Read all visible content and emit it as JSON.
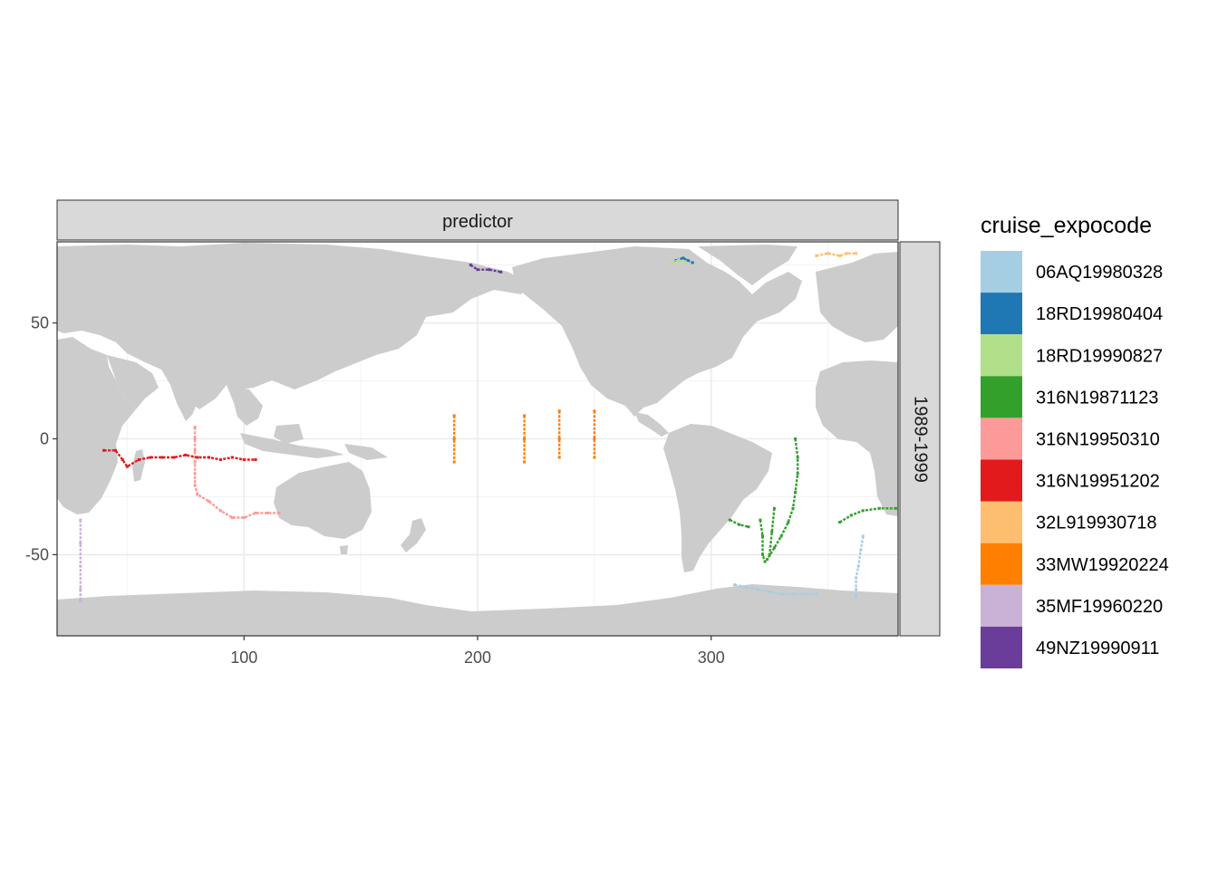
{
  "chart_data": {
    "type": "scatter",
    "panel_strip_top": "predictor",
    "panel_strip_right": "1989-1999",
    "x_ticks": [
      100,
      200,
      300
    ],
    "y_ticks": [
      50,
      0,
      -50
    ],
    "xlim": [
      20,
      380
    ],
    "ylim": [
      -85,
      85
    ],
    "legend": {
      "title": "cruise_expocode",
      "position": "right",
      "entries": [
        {
          "label": "06AQ19980328",
          "color": "#A6CEE3"
        },
        {
          "label": "18RD19980404",
          "color": "#1F78B4"
        },
        {
          "label": "18RD19990827",
          "color": "#B2DF8A"
        },
        {
          "label": "316N19871123",
          "color": "#33A02C"
        },
        {
          "label": "316N19950310",
          "color": "#FB9A99"
        },
        {
          "label": "316N19951202",
          "color": "#E31A1C"
        },
        {
          "label": "32L919930718",
          "color": "#FDBF6F"
        },
        {
          "label": "33MW19920224",
          "color": "#FF7F00"
        },
        {
          "label": "35MF19960220",
          "color": "#CAB2D6"
        },
        {
          "label": "49NZ19990911",
          "color": "#6A3D9A"
        }
      ]
    },
    "land_color": "#CCCCCC",
    "grid": true,
    "tracks": [
      {
        "cruise": "06AQ19980328",
        "points": [
          [
            310,
            -63
          ],
          [
            315,
            -64
          ],
          [
            320,
            -65
          ],
          [
            325,
            -66
          ],
          [
            330,
            -67
          ],
          [
            335,
            -67
          ],
          [
            340,
            -67
          ],
          [
            345,
            -67
          ]
        ]
      },
      {
        "cruise": "06AQ19980328",
        "points": [
          [
            365,
            -42
          ],
          [
            364,
            -48
          ],
          [
            363,
            -55
          ],
          [
            362,
            -60
          ],
          [
            362,
            -65
          ],
          [
            362,
            -68
          ]
        ]
      },
      {
        "cruise": "18RD19980404",
        "points": [
          [
            285,
            77
          ],
          [
            288,
            78
          ],
          [
            290,
            77
          ],
          [
            292,
            76
          ]
        ]
      },
      {
        "cruise": "18RD19990827",
        "points": [
          [
            283,
            76
          ],
          [
            286,
            77
          ],
          [
            289,
            76
          ]
        ]
      },
      {
        "cruise": "316N19871123",
        "points": [
          [
            336,
            0
          ],
          [
            337,
            -8
          ],
          [
            337,
            -15
          ],
          [
            336,
            -23
          ],
          [
            335,
            -30
          ],
          [
            333,
            -36
          ],
          [
            330,
            -42
          ],
          [
            327,
            -47
          ],
          [
            324,
            -52
          ]
        ]
      },
      {
        "cruise": "316N19871123",
        "points": [
          [
            321,
            -35
          ],
          [
            322,
            -42
          ],
          [
            322,
            -50
          ],
          [
            323,
            -53
          ]
        ]
      },
      {
        "cruise": "316N19871123",
        "points": [
          [
            327,
            -30
          ],
          [
            326,
            -40
          ],
          [
            325,
            -50
          ]
        ]
      },
      {
        "cruise": "316N19871123",
        "points": [
          [
            308,
            -35
          ],
          [
            312,
            -37
          ],
          [
            316,
            -38
          ]
        ]
      },
      {
        "cruise": "316N19871123",
        "points": [
          [
            355,
            -36
          ],
          [
            360,
            -33
          ],
          [
            365,
            -31
          ],
          [
            372,
            -30
          ],
          [
            379,
            -30
          ]
        ]
      },
      {
        "cruise": "316N19950310",
        "points": [
          [
            79,
            5
          ],
          [
            79,
            0
          ],
          [
            79,
            -5
          ],
          [
            79,
            -10
          ],
          [
            79,
            -15
          ],
          [
            79,
            -20
          ],
          [
            80,
            -24
          ],
          [
            85,
            -27
          ],
          [
            90,
            -31
          ],
          [
            95,
            -34
          ],
          [
            100,
            -34
          ],
          [
            105,
            -32
          ],
          [
            110,
            -32
          ],
          [
            115,
            -32
          ]
        ]
      },
      {
        "cruise": "316N19951202",
        "points": [
          [
            40,
            -5
          ],
          [
            45,
            -5
          ],
          [
            48,
            -9
          ],
          [
            50,
            -12
          ],
          [
            55,
            -9
          ],
          [
            60,
            -8
          ],
          [
            65,
            -8
          ],
          [
            70,
            -8
          ],
          [
            75,
            -7
          ],
          [
            80,
            -8
          ],
          [
            85,
            -8
          ],
          [
            90,
            -9
          ],
          [
            95,
            -8
          ],
          [
            100,
            -9
          ],
          [
            105,
            -9
          ]
        ]
      },
      {
        "cruise": "32L919930718",
        "points": [
          [
            345,
            79
          ],
          [
            350,
            80
          ],
          [
            355,
            79
          ],
          [
            358,
            80
          ],
          [
            362,
            80
          ]
        ]
      },
      {
        "cruise": "33MW19920224",
        "points": [
          [
            190,
            10
          ],
          [
            190,
            0
          ],
          [
            190,
            -10
          ]
        ]
      },
      {
        "cruise": "33MW19920224",
        "points": [
          [
            220,
            10
          ],
          [
            220,
            0
          ],
          [
            220,
            -10
          ]
        ]
      },
      {
        "cruise": "33MW19920224",
        "points": [
          [
            235,
            12
          ],
          [
            235,
            0
          ],
          [
            235,
            -8
          ]
        ]
      },
      {
        "cruise": "33MW19920224",
        "points": [
          [
            250,
            12
          ],
          [
            250,
            0
          ],
          [
            250,
            -8
          ]
        ]
      },
      {
        "cruise": "35MF19960220",
        "points": [
          [
            30,
            -35
          ],
          [
            30,
            -45
          ],
          [
            30,
            -55
          ],
          [
            30,
            -65
          ],
          [
            30,
            -70
          ]
        ]
      },
      {
        "cruise": "49NZ19990911",
        "points": [
          [
            197,
            75
          ],
          [
            200,
            73
          ],
          [
            205,
            73
          ],
          [
            210,
            72
          ]
        ]
      }
    ]
  }
}
